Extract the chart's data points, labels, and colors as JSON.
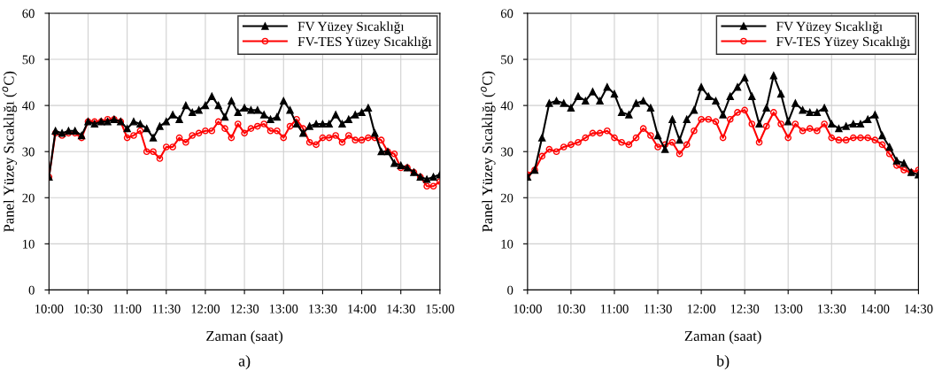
{
  "chart_data": [
    {
      "type": "line",
      "xlabel": "Zaman (saat)",
      "ylabel": "Panel Yüzey Sıcaklığı ($^{o}$C)",
      "annotations": [
        "a)"
      ],
      "x": [
        10.0,
        10.083,
        10.167,
        10.25,
        10.333,
        10.417,
        10.5,
        10.583,
        10.667,
        10.75,
        10.833,
        10.917,
        11.0,
        11.083,
        11.167,
        11.25,
        11.333,
        11.417,
        11.5,
        11.583,
        11.667,
        11.75,
        11.833,
        11.917,
        12.0,
        12.083,
        12.167,
        12.25,
        12.333,
        12.417,
        12.5,
        12.583,
        12.667,
        12.75,
        12.833,
        12.917,
        13.0,
        13.083,
        13.167,
        13.25,
        13.333,
        13.417,
        13.5,
        13.583,
        13.667,
        13.75,
        13.833,
        13.917,
        14.0,
        14.083,
        14.167,
        14.25,
        14.333,
        14.417,
        14.5,
        14.583,
        14.667,
        14.75,
        14.833,
        14.917,
        15.0
      ],
      "series": [
        {
          "name": "FV Yüzey Sıcaklığı",
          "color": "#000000",
          "marker": "triangle",
          "values": [
            24.5,
            34.5,
            34,
            34.5,
            34.5,
            33.5,
            36.5,
            36,
            36.5,
            36.5,
            37,
            36.5,
            35,
            36.5,
            36,
            35,
            33,
            35.5,
            36.5,
            38,
            37,
            40,
            38.5,
            39,
            40,
            42,
            40,
            37.5,
            41,
            38.5,
            39.5,
            39,
            39,
            38,
            37,
            37.5,
            41,
            39,
            36,
            34,
            35.5,
            36,
            36,
            36,
            38,
            36,
            37,
            38,
            38.5,
            39.5,
            34,
            30,
            30,
            27.5,
            27,
            26.5,
            25.5,
            24.5,
            24,
            24.5,
            25
          ]
        },
        {
          "name": "FV-TES Yüzey Sıcaklığı",
          "color": "#ff0000",
          "marker": "circle",
          "values": [
            24.5,
            34,
            33.5,
            34,
            34,
            33,
            36.5,
            36.5,
            36.5,
            37,
            37,
            36.5,
            33,
            33.5,
            34.5,
            30,
            30,
            28.5,
            31,
            31,
            33,
            32,
            33.5,
            34,
            34.5,
            34.5,
            36.5,
            35,
            33,
            36,
            34,
            35,
            35.5,
            36,
            34.5,
            34.5,
            33,
            35.5,
            37,
            35,
            32,
            31.5,
            33,
            33,
            33.5,
            32,
            33.5,
            32.5,
            32.5,
            33,
            33,
            32.5,
            30,
            29.5,
            26.5,
            26.5,
            25.5,
            24.5,
            22.5,
            22.5,
            23.5
          ]
        }
      ],
      "xlim": [
        10,
        15
      ],
      "xticks": [
        {
          "value": 10,
          "label": "10:00"
        },
        {
          "value": 10.5,
          "label": "10:30"
        },
        {
          "value": 11,
          "label": "11:00"
        },
        {
          "value": 11.5,
          "label": "11:30"
        },
        {
          "value": 12,
          "label": "12:00"
        },
        {
          "value": 12.5,
          "label": "12:30"
        },
        {
          "value": 13,
          "label": "13:00"
        },
        {
          "value": 13.5,
          "label": "13:30"
        },
        {
          "value": 14,
          "label": "14:00"
        },
        {
          "value": 14.5,
          "label": "14:30"
        },
        {
          "value": 15,
          "label": "15:00"
        }
      ],
      "ylim": [
        0,
        60
      ],
      "yticks": [
        0,
        10,
        20,
        30,
        40,
        50,
        60
      ],
      "grid": true,
      "legend": "top right"
    },
    {
      "type": "line",
      "xlabel": "Zaman (saat)",
      "ylabel": "Panel Yüzey Sıcaklığı ($^{o}$C)",
      "annotations": [
        "b)"
      ],
      "x": [
        10.0,
        10.083,
        10.167,
        10.25,
        10.333,
        10.417,
        10.5,
        10.583,
        10.667,
        10.75,
        10.833,
        10.917,
        11.0,
        11.083,
        11.167,
        11.25,
        11.333,
        11.417,
        11.5,
        11.583,
        11.667,
        11.75,
        11.833,
        11.917,
        12.0,
        12.083,
        12.167,
        12.25,
        12.333,
        12.417,
        12.5,
        12.583,
        12.667,
        12.75,
        12.833,
        12.917,
        13.0,
        13.083,
        13.167,
        13.25,
        13.333,
        13.417,
        13.5,
        13.583,
        13.667,
        13.75,
        13.833,
        13.917,
        14.0,
        14.083,
        14.167,
        14.25,
        14.333,
        14.417,
        14.5
      ],
      "series": [
        {
          "name": "FV Yüzey Sıcaklığı",
          "color": "#000000",
          "marker": "triangle",
          "values": [
            24.5,
            26,
            33,
            40.5,
            41,
            40.5,
            39.5,
            42,
            41,
            43,
            41,
            44,
            42.5,
            38.5,
            38,
            40.5,
            41,
            39.5,
            33.5,
            30.5,
            37,
            32.5,
            37,
            39,
            44,
            42,
            41,
            38,
            42,
            44,
            46,
            42,
            36,
            39.5,
            46.5,
            42.5,
            36.5,
            40.5,
            39,
            38.5,
            38.5,
            39.5,
            36,
            35,
            35.5,
            36,
            36,
            37,
            38,
            33.5,
            31,
            28,
            27.5,
            25.5,
            25
          ]
        },
        {
          "name": "FV-TES Yüzey Sıcaklığı",
          "color": "#ff0000",
          "marker": "circle",
          "values": [
            25,
            26,
            29,
            30.5,
            30,
            31,
            31.5,
            32,
            33,
            34,
            34,
            34.5,
            33,
            32,
            31.5,
            33,
            35,
            33.5,
            31,
            31.5,
            32,
            29.5,
            31.5,
            34.5,
            37,
            37,
            36.5,
            33,
            37,
            38.5,
            39,
            36,
            32,
            35.5,
            38.5,
            36,
            33,
            36,
            34.5,
            35,
            34.5,
            36,
            33,
            32.5,
            32.5,
            33,
            33,
            33,
            32.5,
            31.5,
            29.5,
            27,
            26,
            25.5,
            26
          ]
        }
      ],
      "xlim": [
        10,
        14.5
      ],
      "xticks": [
        {
          "value": 10,
          "label": "10:00"
        },
        {
          "value": 10.5,
          "label": "10:30"
        },
        {
          "value": 11,
          "label": "11:00"
        },
        {
          "value": 11.5,
          "label": "11:30"
        },
        {
          "value": 12,
          "label": "12:00"
        },
        {
          "value": 12.5,
          "label": "12:30"
        },
        {
          "value": 13,
          "label": "13:00"
        },
        {
          "value": 13.5,
          "label": "13:30"
        },
        {
          "value": 14,
          "label": "14:00"
        },
        {
          "value": 14.5,
          "label": "14:30"
        }
      ],
      "ylim": [
        0,
        60
      ],
      "yticks": [
        0,
        10,
        20,
        30,
        40,
        50,
        60
      ],
      "grid": true,
      "legend": "top right"
    }
  ]
}
